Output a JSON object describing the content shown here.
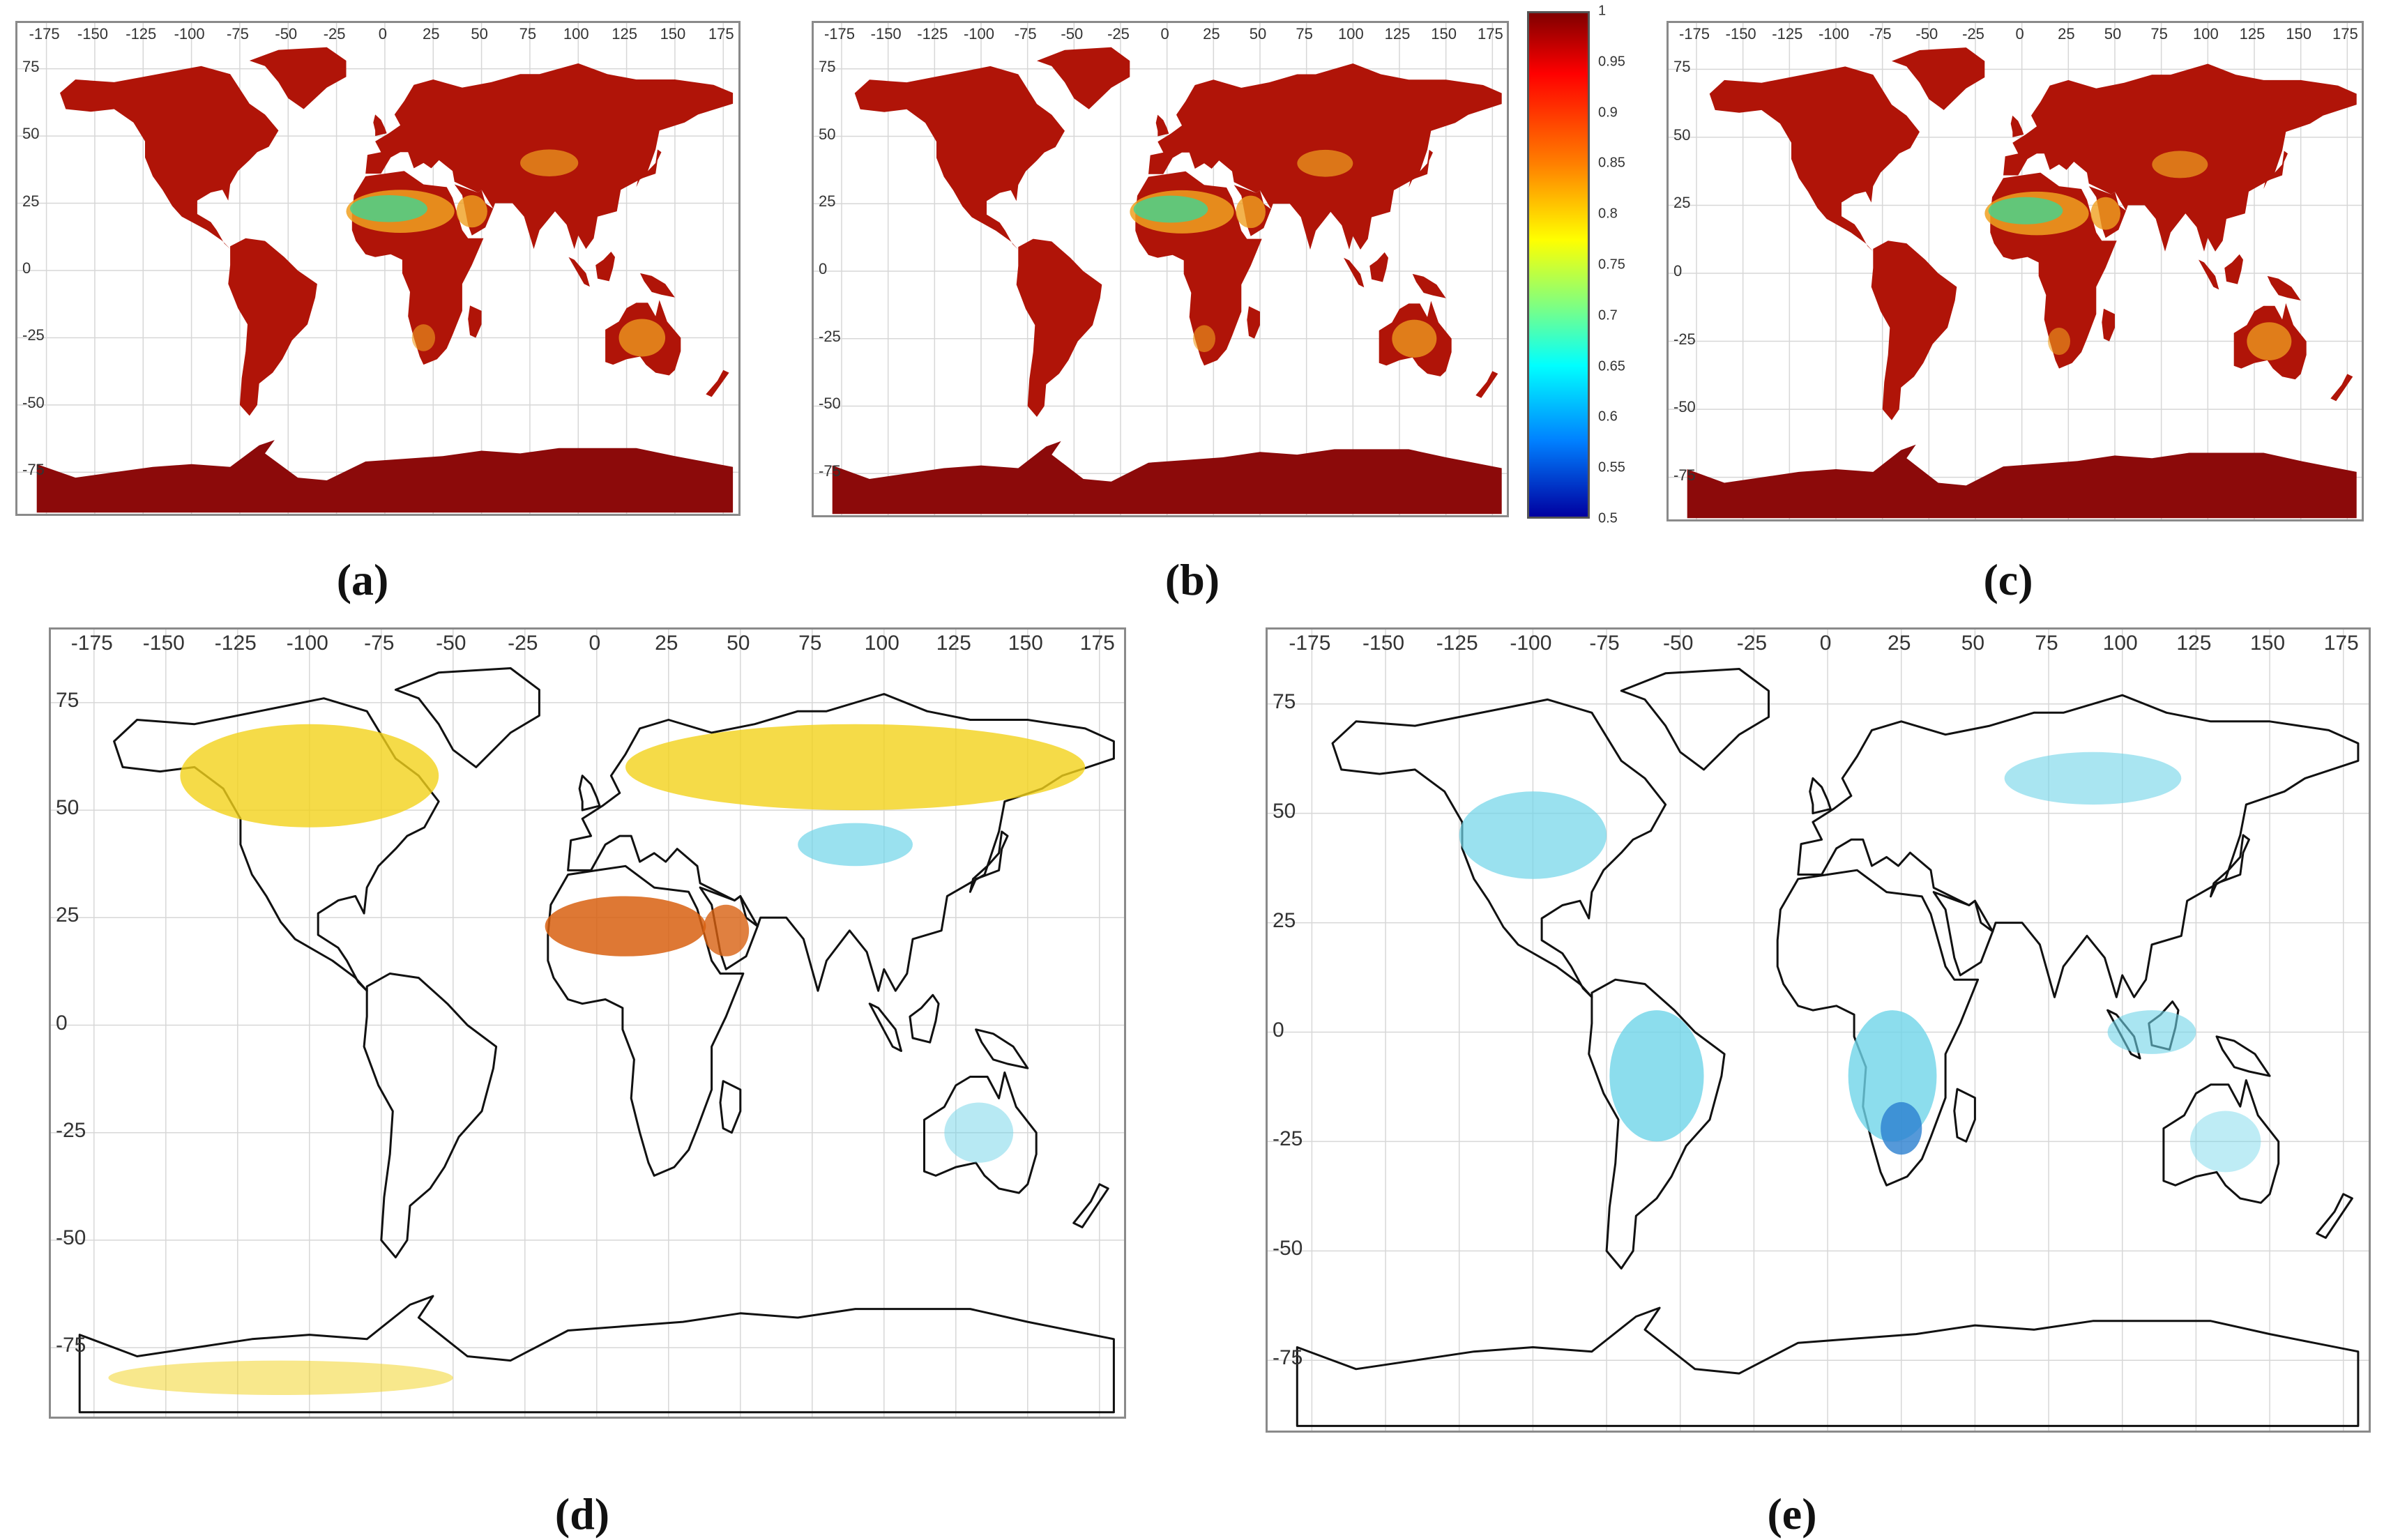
{
  "panels": [
    {
      "id": "a",
      "caption": "(a)",
      "style": "emissivity"
    },
    {
      "id": "b",
      "caption": "(b)",
      "style": "emissivity"
    },
    {
      "id": "c",
      "caption": "(c)",
      "style": "emissivity"
    },
    {
      "id": "d",
      "caption": "(d)",
      "style": "diff-positive"
    },
    {
      "id": "e",
      "caption": "(e)",
      "style": "diff-negative"
    }
  ],
  "lon_ticks": [
    "-175",
    "-150",
    "-125",
    "-100",
    "-75",
    "-50",
    "-25",
    "0",
    "25",
    "50",
    "75",
    "100",
    "125",
    "150",
    "175"
  ],
  "lat_ticks": [
    "75",
    "50",
    "25",
    "0",
    "-25",
    "-50",
    "-75"
  ],
  "colorbar": {
    "ticks": [
      "1",
      "0.95",
      "0.9",
      "0.85",
      "0.8",
      "0.75",
      "0.7",
      "0.65",
      "0.6",
      "0.55",
      "0.5"
    ],
    "range": [
      0.5,
      1.0
    ],
    "colormap": "jet"
  },
  "colors": {
    "land_high": "#b01408",
    "antarctica": "#8c0a0a",
    "desert_mid": "#f0a020",
    "desert_low": "#4ad08a",
    "diff_positive": "#f2d21a",
    "diff_positive_strong": "#d86010",
    "diff_negative": "#6fd4e8",
    "diff_negative_strong": "#2a7fd0"
  }
}
